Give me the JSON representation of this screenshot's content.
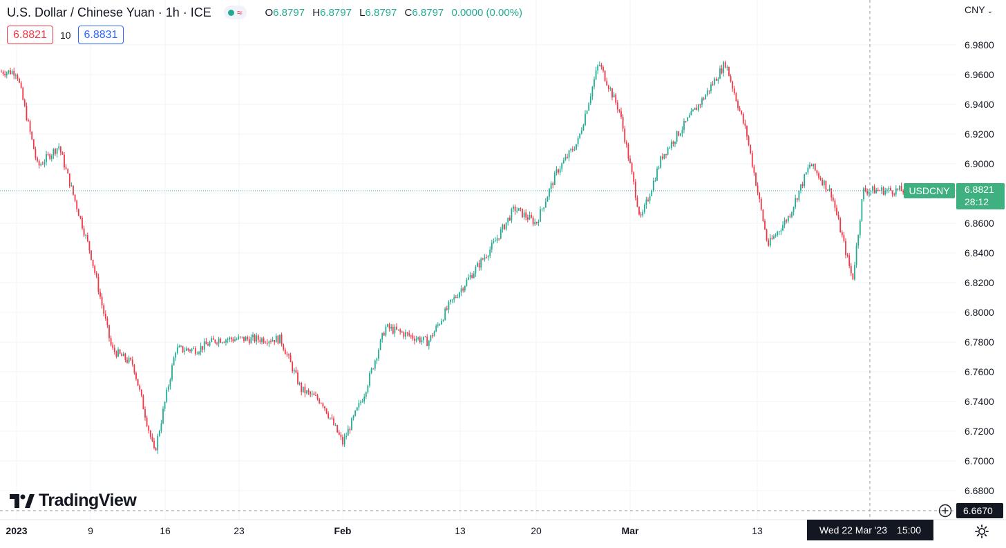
{
  "header": {
    "title": "U.S. Dollar / Chinese Yuan · 1h · ICE",
    "ohlc": [
      {
        "key": "O",
        "value": "6.8797"
      },
      {
        "key": "H",
        "value": "6.8797"
      },
      {
        "key": "L",
        "value": "6.8797"
      },
      {
        "key": "C",
        "value": "6.8797"
      }
    ],
    "change": "0.0000 (0.00%)",
    "status_icons": [
      "market-open-dot-icon",
      "approx-wave-icon"
    ]
  },
  "quote": {
    "sell": "6.8821",
    "spread": "10",
    "buy": "6.8831"
  },
  "currency": "CNY",
  "symbol_tag": "USDCNY",
  "last_price": "6.8821",
  "countdown": "28:12",
  "crosshair": {
    "price": "6.6670",
    "date": "Wed 22 Mar '23",
    "time": "15:00"
  },
  "logo": "TradingView",
  "colors": {
    "up": "#22ab94",
    "down": "#f23645",
    "last_price_bg": "#3fb07f",
    "grid": "#f0f3fa"
  },
  "chart_data": {
    "type": "candlestick",
    "title": "U.S. Dollar / Chinese Yuan · 1h · ICE",
    "series": [
      {
        "name": "USDCNY",
        "x_dates": [
          "2023-01-02",
          "2023-01-04",
          "2023-01-06",
          "2023-01-09",
          "2023-01-11",
          "2023-01-13",
          "2023-01-15",
          "2023-01-17",
          "2023-01-19",
          "2023-01-21",
          "2023-01-23",
          "2023-01-25",
          "2023-01-27",
          "2023-01-29",
          "2023-01-31",
          "2023-02-02",
          "2023-02-04",
          "2023-02-06",
          "2023-02-08",
          "2023-02-10",
          "2023-02-12",
          "2023-02-14",
          "2023-02-16",
          "2023-02-18",
          "2023-02-20",
          "2023-02-22",
          "2023-02-24",
          "2023-02-26",
          "2023-02-28",
          "2023-03-02",
          "2023-03-04",
          "2023-03-06",
          "2023-03-08",
          "2023-03-10",
          "2023-03-12",
          "2023-03-14",
          "2023-03-16",
          "2023-03-18",
          "2023-03-20",
          "2023-03-22",
          "2023-03-23"
        ],
        "close": [
          6.962,
          6.898,
          6.912,
          6.84,
          6.775,
          6.765,
          6.705,
          6.775,
          6.775,
          6.782,
          6.782,
          6.782,
          6.782,
          6.748,
          6.74,
          6.712,
          6.745,
          6.79,
          6.785,
          6.78,
          6.805,
          6.825,
          6.845,
          6.87,
          6.86,
          6.895,
          6.915,
          6.968,
          6.935,
          6.862,
          6.905,
          6.925,
          6.945,
          6.968,
          6.92,
          6.845,
          6.865,
          6.9,
          6.88,
          6.822,
          6.8821
        ]
      }
    ],
    "y_ticks": [
      "6.9800",
      "6.9600",
      "6.9400",
      "6.9200",
      "6.9000",
      "6.8800",
      "6.8600",
      "6.8400",
      "6.8200",
      "6.8000",
      "6.7800",
      "6.7600",
      "6.7400",
      "6.7200",
      "6.7000",
      "6.6800"
    ],
    "x_ticks": [
      "2023",
      "9",
      "16",
      "23",
      "Feb",
      "13",
      "20",
      "Mar",
      "13"
    ],
    "ylim": [
      6.667,
      6.995
    ],
    "grid": true,
    "last_price": 6.8821
  }
}
